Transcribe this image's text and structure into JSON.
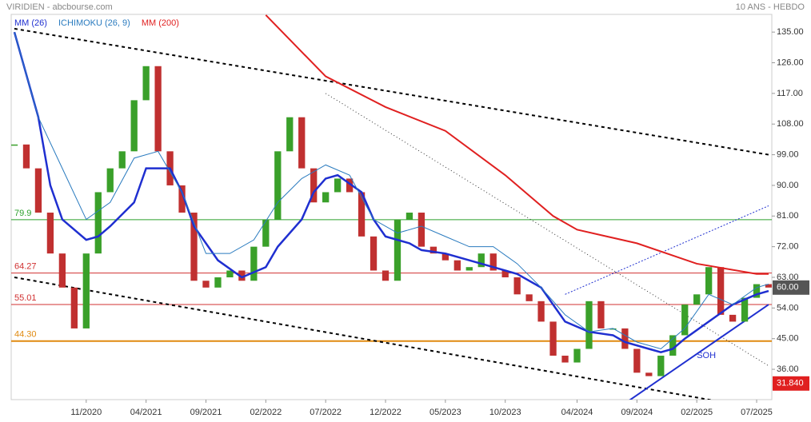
{
  "header": {
    "title": "VIRIDIEN - abcbourse.com",
    "period": "10 ANS - HEBDO"
  },
  "chart_data": {
    "type": "candle-line",
    "legend": [
      {
        "name": "MM (26)",
        "color": "#1f2fd0"
      },
      {
        "name": "ICHIMOKU (26, 9)",
        "color": "#2a7bbf"
      },
      {
        "name": "MM (200)",
        "color": "#e02020"
      }
    ],
    "xlim": [
      "05/2020",
      "08/2025"
    ],
    "xticks": [
      "11/2020",
      "04/2021",
      "09/2021",
      "02/2022",
      "07/2022",
      "12/2022",
      "05/2023",
      "10/2023",
      "04/2024",
      "09/2024",
      "02/2025",
      "07/2025"
    ],
    "ylim": [
      27.1,
      140.2
    ],
    "yticks": [
      {
        "value": 36,
        "label": "36.00"
      },
      {
        "value": 45,
        "label": "45.00"
      },
      {
        "value": 54,
        "label": "54.00"
      },
      {
        "value": 63,
        "label": "63.00"
      },
      {
        "value": 72,
        "label": "72.00"
      },
      {
        "value": 81,
        "label": "81.00"
      },
      {
        "value": 90,
        "label": "90.00"
      },
      {
        "value": 99,
        "label": "99.00"
      },
      {
        "value": 108,
        "label": "108.00"
      },
      {
        "value": 117,
        "label": "117.00"
      },
      {
        "value": 126,
        "label": "126.00"
      },
      {
        "value": 135,
        "label": "135.00"
      }
    ],
    "price": {
      "up_color": "#3aa02a",
      "down_color": "#c03030",
      "x": [
        "05/2020",
        "06/2020",
        "07/2020",
        "08/2020",
        "09/2020",
        "10/2020",
        "11/2020",
        "12/2020",
        "01/2021",
        "02/2021",
        "03/2021",
        "04/2021",
        "05/2021",
        "06/2021",
        "07/2021",
        "08/2021",
        "09/2021",
        "10/2021",
        "11/2021",
        "12/2021",
        "01/2022",
        "02/2022",
        "03/2022",
        "04/2022",
        "05/2022",
        "06/2022",
        "07/2022",
        "08/2022",
        "09/2022",
        "10/2022",
        "11/2022",
        "12/2022",
        "01/2023",
        "02/2023",
        "03/2023",
        "04/2023",
        "05/2023",
        "06/2023",
        "07/2023",
        "08/2023",
        "09/2023",
        "10/2023",
        "11/2023",
        "12/2023",
        "01/2024",
        "02/2024",
        "03/2024",
        "04/2024",
        "05/2024",
        "06/2024",
        "07/2024",
        "08/2024",
        "09/2024",
        "10/2024",
        "11/2024",
        "12/2024",
        "01/2025",
        "02/2025",
        "03/2025",
        "04/2025",
        "05/2025",
        "06/2025",
        "07/2025",
        "08/2025"
      ],
      "values": [
        102,
        95,
        82,
        70,
        60,
        48,
        70,
        88,
        95,
        100,
        115,
        125,
        100,
        90,
        82,
        62,
        60,
        63,
        65,
        62,
        72,
        80,
        100,
        110,
        95,
        85,
        88,
        92,
        88,
        75,
        65,
        62,
        80,
        82,
        72,
        70,
        68,
        65,
        66,
        70,
        65,
        63,
        58,
        56,
        50,
        40,
        38,
        42,
        56,
        48,
        48,
        42,
        35,
        34,
        40,
        46,
        55,
        58,
        66,
        52,
        50,
        57,
        61,
        60
      ]
    },
    "series": [
      {
        "name": "MM (26)",
        "color": "#1f2fd0",
        "width": 2.5,
        "x": [
          "05/2020",
          "07/2020",
          "08/2020",
          "09/2020",
          "11/2020",
          "12/2020",
          "01/2021",
          "03/2021",
          "04/2021",
          "06/2021",
          "07/2021",
          "08/2021",
          "10/2021",
          "12/2021",
          "02/2022",
          "03/2022",
          "05/2022",
          "06/2022",
          "07/2022",
          "08/2022",
          "10/2022",
          "11/2022",
          "12/2022",
          "02/2023",
          "03/2023",
          "05/2023",
          "06/2023",
          "09/2023",
          "11/2023",
          "01/2024",
          "02/2024",
          "03/2024",
          "05/2024",
          "07/2024",
          "08/2024",
          "10/2024",
          "11/2024",
          "12/2024",
          "01/2025",
          "03/2025",
          "05/2025",
          "07/2025",
          "08/2025"
        ],
        "values": [
          135,
          110,
          90,
          80,
          74,
          75,
          78,
          85,
          95,
          95,
          88,
          78,
          68,
          63,
          66,
          72,
          80,
          88,
          92,
          93,
          88,
          80,
          75,
          73,
          71,
          70,
          69,
          66,
          64,
          60,
          55,
          50,
          47,
          46,
          44,
          42,
          41,
          42,
          45,
          50,
          55,
          58,
          59
        ]
      },
      {
        "name": "ICHIMOKU (26, 9)",
        "color": "#2a7bbf",
        "width": 1,
        "x": [
          "05/2020",
          "07/2020",
          "09/2020",
          "11/2020",
          "01/2021",
          "03/2021",
          "05/2021",
          "07/2021",
          "09/2021",
          "11/2021",
          "01/2022",
          "03/2022",
          "05/2022",
          "07/2022",
          "09/2022",
          "11/2022",
          "01/2023",
          "03/2023",
          "05/2023",
          "07/2023",
          "09/2023",
          "11/2023",
          "01/2024",
          "03/2024",
          "05/2024",
          "07/2024",
          "09/2024",
          "11/2024",
          "01/2025",
          "03/2025",
          "05/2025",
          "07/2025",
          "08/2025"
        ],
        "values": [
          135,
          110,
          95,
          80,
          85,
          98,
          100,
          88,
          70,
          70,
          74,
          85,
          92,
          96,
          93,
          80,
          76,
          78,
          75,
          72,
          72,
          67,
          60,
          52,
          47,
          48,
          44,
          42,
          48,
          58,
          55,
          60,
          61
        ]
      },
      {
        "name": "MM (200)",
        "color": "#e02020",
        "width": 2,
        "x": [
          "02/2022",
          "07/2022",
          "12/2022",
          "05/2023",
          "10/2023",
          "02/2024",
          "04/2024",
          "09/2024",
          "02/2025",
          "07/2025",
          "08/2025"
        ],
        "values": [
          140,
          122,
          113,
          106,
          93,
          81,
          77,
          73,
          67,
          64,
          64
        ]
      }
    ],
    "levels": [
      {
        "value": 79.93,
        "label": "79.9",
        "color": "#2ca02c"
      },
      {
        "value": 64.27,
        "label": "64.27",
        "color": "#d03030"
      },
      {
        "value": 55.01,
        "label": "55.01",
        "color": "#d03030"
      },
      {
        "value": 44.3,
        "label": "44.30",
        "color": "#e08a10"
      }
    ],
    "trendlines": [
      {
        "x": [
          "05/2020",
          "08/2025"
        ],
        "values": [
          136,
          99
        ],
        "color": "#000",
        "dash": "4 4",
        "width": 2
      },
      {
        "x": [
          "05/2020",
          "08/2025"
        ],
        "values": [
          63,
          24
        ],
        "color": "#000",
        "dash": "4 4",
        "width": 2
      },
      {
        "x": [
          "07/2022",
          "08/2025"
        ],
        "values": [
          117,
          37
        ],
        "color": "#333",
        "dash": "1 3",
        "width": 1
      },
      {
        "x": [
          "03/2024",
          "08/2025"
        ],
        "values": [
          58,
          84
        ],
        "color": "#2030d0",
        "dash": "2 2",
        "width": 1
      },
      {
        "x": [
          "08/2024",
          "08/2025"
        ],
        "values": [
          26,
          55
        ],
        "color": "#2030d0",
        "dash": "",
        "width": 2
      }
    ],
    "annotation": {
      "text": "SOH",
      "x": "02/2025",
      "y": 40
    },
    "last_price": {
      "value": 60,
      "label": "60.00"
    },
    "low_price": {
      "value": 31.84,
      "label": "31.840"
    }
  }
}
